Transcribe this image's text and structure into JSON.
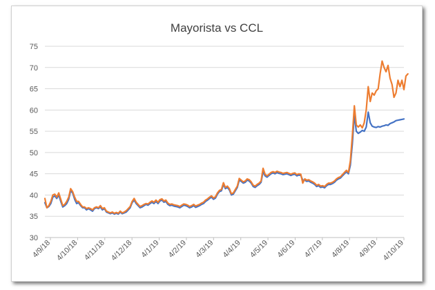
{
  "chart_data": {
    "type": "line",
    "title": "Mayorista vs CCL",
    "xlabel": "",
    "ylabel": "",
    "ylim": [
      30,
      75
    ],
    "y_ticks": [
      30,
      35,
      40,
      45,
      50,
      55,
      60,
      65,
      70,
      75
    ],
    "x_tick_labels": [
      "4/9/18",
      "4/10/18",
      "4/11/18",
      "4/12/18",
      "4/1/19",
      "4/2/19",
      "4/3/19",
      "4/4/19",
      "4/5/19",
      "4/6/19",
      "4/7/19",
      "4/8/19",
      "4/9/19",
      "4/10/19"
    ],
    "grid": "horizontal",
    "legend": "none",
    "colors": [
      "#4472C4",
      "#ED7D31"
    ],
    "series": [
      {
        "values": [
          38.2,
          37.0,
          37.3,
          38.0,
          39.5,
          39.8,
          39.2,
          40.0,
          38.5,
          37.2,
          37.5,
          38.0,
          39.0,
          41.0,
          40.5,
          39.0,
          38.0,
          38.2,
          37.5,
          37.0,
          37.0,
          36.5,
          36.8,
          36.5,
          36.2,
          36.8,
          37.0,
          36.8,
          37.2,
          36.5,
          36.8,
          36.0,
          35.8,
          35.6,
          35.8,
          35.5,
          35.7,
          35.5,
          36.0,
          35.6,
          35.8,
          36.0,
          36.5,
          37.0,
          38.2,
          38.8,
          38.0,
          37.5,
          37.0,
          37.2,
          37.5,
          37.8,
          37.6,
          38.0,
          38.3,
          38.0,
          38.5,
          38.0,
          38.6,
          38.8,
          38.3,
          38.5,
          37.8,
          37.5,
          37.6,
          37.4,
          37.3,
          37.2,
          37.0,
          37.3,
          37.6,
          37.5,
          37.3,
          37.0,
          37.2,
          37.5,
          37.1,
          37.3,
          37.5,
          37.8,
          38.0,
          38.5,
          38.8,
          39.2,
          39.5,
          39.0,
          39.3,
          40.2,
          40.8,
          41.0,
          42.5,
          41.5,
          41.8,
          41.2,
          40.0,
          40.2,
          41.0,
          41.8,
          43.5,
          43.2,
          42.8,
          43.0,
          43.5,
          43.3,
          42.8,
          42.0,
          41.8,
          42.2,
          42.5,
          43.0,
          45.5,
          44.5,
          44.2,
          44.6,
          45.0,
          45.2,
          45.0,
          45.3,
          45.1,
          45.0,
          44.8,
          44.9,
          45.0,
          44.8,
          44.6,
          44.8,
          44.9,
          44.5,
          44.7,
          44.6,
          43.5,
          43.5,
          43.2,
          43.3,
          43.0,
          42.8,
          42.5,
          42.0,
          42.2,
          41.8,
          41.9,
          41.7,
          42.2,
          42.5,
          42.5,
          42.7,
          43.0,
          43.5,
          43.8,
          44.0,
          44.5,
          45.0,
          45.5,
          45.0,
          47.0,
          52.0,
          59.0,
          55.0,
          54.5,
          54.8,
          55.2,
          55.0,
          56.0,
          59.5,
          57.0,
          56.2,
          56.0,
          55.9,
          56.1,
          56.0,
          56.2,
          56.3,
          56.5,
          56.4,
          56.8,
          57.0,
          57.2,
          57.5,
          57.6,
          57.7,
          57.8,
          57.9
        ]
      },
      {
        "values": [
          39.2,
          37.0,
          37.5,
          38.5,
          40.0,
          40.2,
          39.5,
          40.5,
          39.0,
          37.5,
          37.8,
          38.5,
          39.5,
          41.5,
          40.8,
          39.5,
          38.5,
          38.5,
          37.8,
          37.2,
          37.2,
          36.8,
          37.0,
          36.8,
          36.5,
          37.0,
          37.2,
          37.0,
          37.5,
          36.8,
          37.0,
          36.2,
          36.0,
          35.8,
          36.0,
          35.7,
          35.9,
          35.7,
          36.2,
          35.8,
          36.0,
          36.3,
          36.8,
          37.3,
          38.5,
          39.2,
          38.3,
          37.8,
          37.3,
          37.5,
          37.8,
          38.0,
          37.9,
          38.3,
          38.6,
          38.3,
          38.8,
          38.3,
          38.9,
          39.1,
          38.6,
          38.8,
          38.1,
          37.8,
          37.9,
          37.7,
          37.6,
          37.5,
          37.3,
          37.6,
          37.9,
          37.8,
          37.6,
          37.3,
          37.5,
          37.8,
          37.4,
          37.6,
          37.8,
          38.1,
          38.3,
          38.8,
          39.1,
          39.5,
          39.8,
          39.3,
          39.6,
          40.5,
          41.1,
          41.3,
          42.9,
          41.8,
          42.1,
          41.5,
          40.3,
          40.5,
          41.3,
          42.1,
          43.9,
          43.5,
          43.1,
          43.3,
          43.8,
          43.6,
          43.1,
          42.3,
          42.1,
          42.5,
          42.8,
          43.3,
          46.3,
          44.9,
          44.5,
          44.9,
          45.3,
          45.5,
          45.3,
          45.6,
          45.4,
          45.3,
          45.1,
          45.2,
          45.3,
          45.1,
          44.9,
          45.1,
          45.2,
          44.8,
          45.0,
          44.9,
          42.8,
          43.8,
          43.5,
          43.6,
          43.3,
          43.1,
          42.8,
          42.3,
          42.5,
          42.1,
          42.2,
          42.0,
          42.5,
          42.8,
          42.8,
          43.0,
          43.3,
          43.8,
          44.1,
          44.3,
          44.8,
          45.3,
          45.8,
          45.3,
          48.0,
          54.0,
          61.0,
          56.5,
          56.0,
          56.5,
          55.8,
          57.0,
          60.0,
          65.5,
          62.0,
          64.0,
          63.5,
          64.5,
          65.0,
          68.5,
          71.5,
          70.0,
          69.0,
          70.5,
          67.5,
          66.0,
          63.0,
          64.0,
          67.0,
          65.5,
          67.0,
          64.8,
          68.0,
          68.5
        ]
      }
    ]
  }
}
